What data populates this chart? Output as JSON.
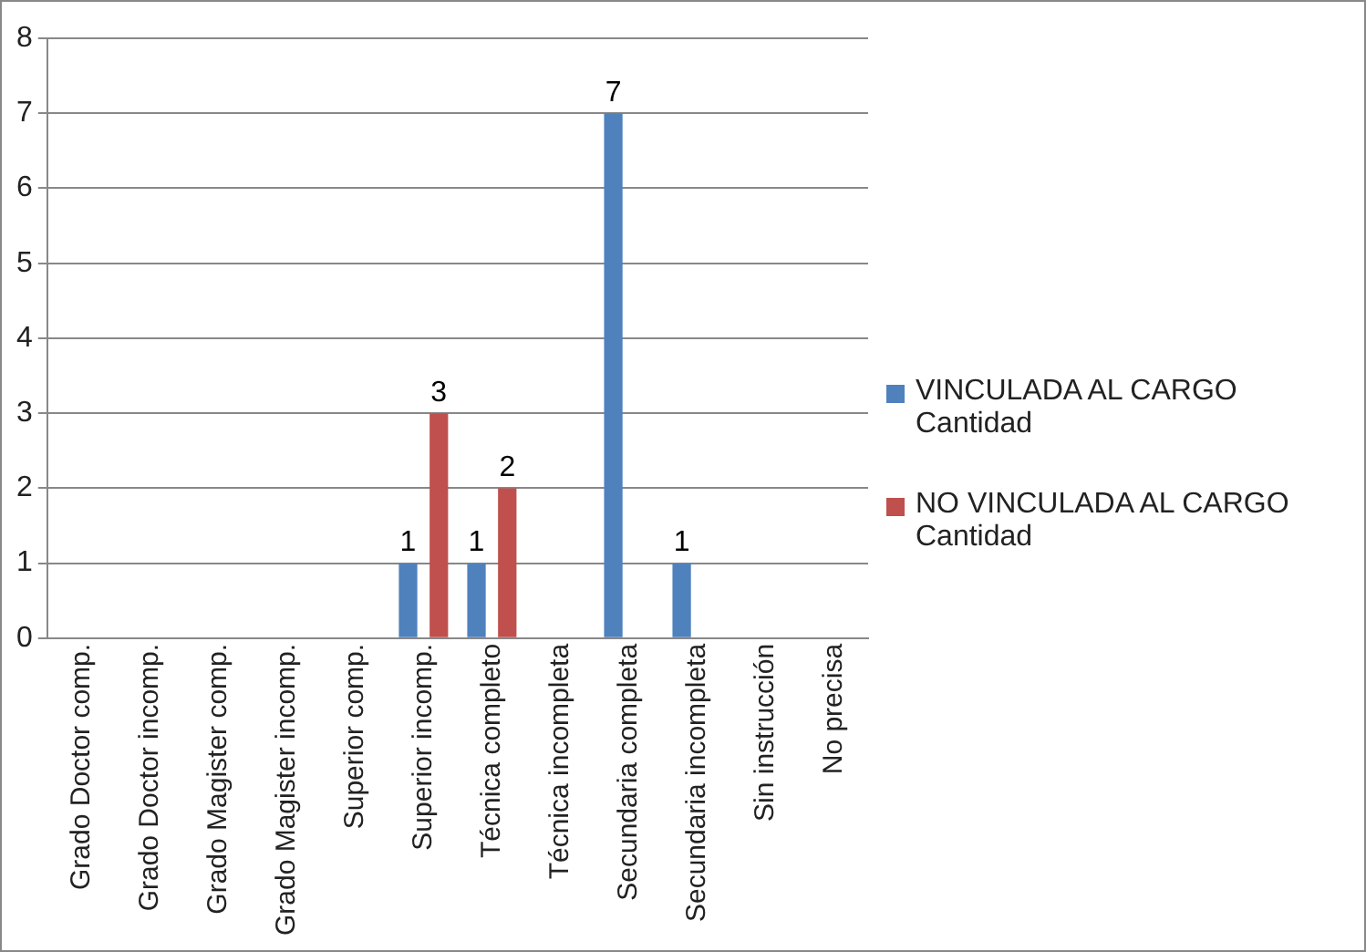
{
  "chart_data": {
    "type": "bar",
    "categories": [
      "Grado Doctor comp.",
      "Grado Doctor incomp.",
      "Grado Magister comp.",
      "Grado Magister incomp.",
      "Superior comp.",
      "Superior incomp.",
      "Técnica completo",
      "Técnica incompleta",
      "Secundaria completa",
      "Secundaria incompleta",
      "Sin instrucción",
      "No precisa"
    ],
    "series": [
      {
        "name": "VINCULADA AL CARGO Cantidad",
        "color": "#4f81bd",
        "values": [
          null,
          null,
          null,
          null,
          null,
          1,
          1,
          null,
          7,
          1,
          null,
          null
        ]
      },
      {
        "name": "NO VINCULADA AL CARGO Cantidad",
        "color": "#c0504d",
        "values": [
          null,
          null,
          null,
          null,
          null,
          3,
          2,
          null,
          null,
          null,
          null,
          null
        ]
      }
    ],
    "ylim": [
      0,
      8
    ],
    "yticks": [
      0,
      1,
      2,
      3,
      4,
      5,
      6,
      7,
      8
    ],
    "grid": "y",
    "legend": "right",
    "data_labels": true
  }
}
